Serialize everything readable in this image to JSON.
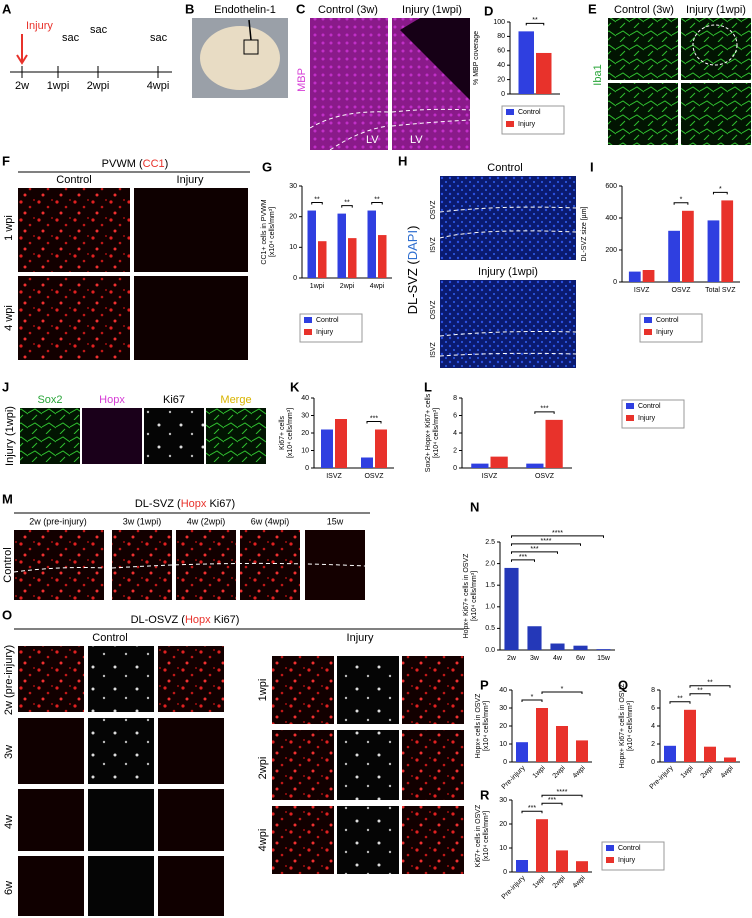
{
  "panels": {
    "A": {
      "label": "A",
      "injury": "Injury",
      "sac": [
        "sac",
        "sac",
        "sac"
      ],
      "timepoints": [
        "2w",
        "1wpi",
        "2wpi",
        "4wpi"
      ]
    },
    "B": {
      "label": "B",
      "title": "Endothelin-1"
    },
    "C": {
      "label": "C",
      "columns": [
        "Control (3w)",
        "Injury (1wpi)"
      ],
      "stain": "MBP",
      "regions": [
        "LV",
        "LV"
      ]
    },
    "E": {
      "label": "E",
      "stain": "Iba1",
      "columns": [
        "Control (3w)",
        "Injury (1wpi)"
      ]
    },
    "F": {
      "label": "F",
      "title": [
        "PVWM (",
        "CC1",
        ")"
      ],
      "columns": [
        "Control",
        "Injury"
      ],
      "rows": [
        "1 wpi",
        "4 wpi"
      ]
    },
    "H": {
      "label": "H",
      "stain": [
        "DL-SVZ (",
        "DAPI",
        ")"
      ],
      "sections": [
        "Control",
        "Injury (1wpi)"
      ],
      "zones": [
        "OSVZ",
        "ISVZ",
        "OSVZ",
        "ISVZ"
      ]
    },
    "J": {
      "label": "J",
      "channels": [
        "Sox2",
        "Hopx",
        "Ki67",
        "Merge"
      ],
      "row": "Injury (1wpi)"
    },
    "M": {
      "label": "M",
      "title": [
        "DL-SVZ (",
        "Hopx",
        " Ki67",
        ")"
      ],
      "columns": [
        "2w (pre-injury)",
        "3w (1wpi)",
        "4w (2wpi)",
        "6w (4wpi)",
        "15w"
      ],
      "row": "Control"
    },
    "O": {
      "label": "O",
      "title": [
        "DL-OSVZ (",
        "Hopx",
        " Ki67",
        ")"
      ],
      "groups": [
        "Control",
        "Injury"
      ],
      "control_rows": [
        "2w (pre-injury)",
        "3w",
        "4w",
        "6w"
      ],
      "injury_rows": [
        "1wpi",
        "2wpi",
        "4wpi"
      ]
    }
  },
  "chart_data": [
    {
      "type": "bar",
      "label": "D",
      "ylabel": [
        "% MBP coverage"
      ],
      "categories": [
        null
      ],
      "series": [
        {
          "name": "Control",
          "color": "#2f3fe0",
          "values": [
            87
          ]
        },
        {
          "name": "Injury",
          "color": "#e8322b",
          "values": [
            57
          ]
        }
      ],
      "ylim": [
        0,
        100
      ],
      "yticks": [
        0,
        20,
        40,
        60,
        80,
        100
      ],
      "annotations": [
        {
          "text": "**",
          "category": 0
        }
      ],
      "legend": true
    },
    {
      "type": "bar",
      "label": "G",
      "ylabel": [
        "CC1+ cells in PVWM",
        "[x10⁴ cells/mm³]"
      ],
      "categories": [
        "1wpi",
        "2wpi",
        "4wpi"
      ],
      "series": [
        {
          "name": "Control",
          "color": "#2f3fe0",
          "values": [
            22,
            21,
            22
          ]
        },
        {
          "name": "Injury",
          "color": "#e8322b",
          "values": [
            12,
            13,
            14
          ]
        }
      ],
      "ylim": [
        0,
        30
      ],
      "yticks": [
        0,
        10,
        20,
        30
      ],
      "annotations": [
        {
          "text": "**",
          "category": 0
        },
        {
          "text": "**",
          "category": 1
        },
        {
          "text": "**",
          "category": 2
        }
      ],
      "legend": true
    },
    {
      "type": "bar",
      "label": "I",
      "ylabel": [
        "DL-SVZ size [µm]"
      ],
      "categories": [
        "ISVZ",
        "OSVZ",
        "Total SVZ"
      ],
      "series": [
        {
          "name": "Control",
          "color": "#2f3fe0",
          "values": [
            65,
            320,
            385
          ]
        },
        {
          "name": "Injury",
          "color": "#e8322b",
          "values": [
            75,
            445,
            510
          ]
        }
      ],
      "ylim": [
        0,
        600
      ],
      "yticks": [
        0,
        200,
        400,
        600
      ],
      "annotations": [
        {
          "text": "*",
          "category": 1
        },
        {
          "text": "*",
          "category": 2
        }
      ],
      "legend": true
    },
    {
      "type": "bar",
      "label": "K",
      "ylabel": [
        "Ki67+ cells",
        "[x10⁴ cells/mm³]"
      ],
      "categories": [
        "ISVZ",
        "OSVZ"
      ],
      "series": [
        {
          "color": "#2f3fe0",
          "values": [
            22,
            6
          ]
        },
        {
          "color": "#e8322b",
          "values": [
            28,
            22
          ]
        }
      ],
      "ylim": [
        0,
        40
      ],
      "yticks": [
        0,
        10,
        20,
        30,
        40
      ],
      "annotations": [
        {
          "text": "***",
          "category": 1
        }
      ]
    },
    {
      "type": "bar",
      "label": "L",
      "ylabel": [
        "Sox2+ Hopx+ Ki67+ cells",
        "[x10⁴ cells/mm³]"
      ],
      "categories": [
        "ISVZ",
        "OSVZ"
      ],
      "series": [
        {
          "name": "Control",
          "color": "#2f3fe0",
          "values": [
            0.5,
            0.5
          ]
        },
        {
          "name": "Injury",
          "color": "#e8322b",
          "values": [
            1.3,
            5.5
          ]
        }
      ],
      "ylim": [
        0,
        8
      ],
      "yticks": [
        0,
        2,
        4,
        6,
        8
      ],
      "annotations": [
        {
          "text": "***",
          "category": 1
        }
      ],
      "legend": true
    },
    {
      "type": "bar",
      "label": "N",
      "ylabel": [
        "Hopx+ Ki67+ cells in OSVZ",
        "[x10⁴ cells/mm³]"
      ],
      "categories": [
        "2w",
        "3w",
        "4w",
        "6w",
        "15w"
      ],
      "series": [
        {
          "color": "#2438b8",
          "values": [
            1.9,
            0.55,
            0.15,
            0.1,
            0.02
          ]
        }
      ],
      "ylim": [
        0,
        2.5
      ],
      "yticks": [
        {
          "value": 0,
          "label": "0.0"
        },
        {
          "value": 0.5,
          "label": "0.5"
        },
        {
          "value": 1,
          "label": "1.0"
        },
        {
          "value": 1.5,
          "label": "1.5"
        },
        {
          "value": 2,
          "label": "2.0"
        },
        {
          "value": 2.5,
          "label": "2.5"
        }
      ],
      "annotations": [
        {
          "text": "***",
          "from": 0,
          "to": 1
        },
        {
          "text": "***",
          "from": 0,
          "to": 2
        },
        {
          "text": "****",
          "from": 0,
          "to": 3
        },
        {
          "text": "****",
          "from": 0,
          "to": 4
        }
      ]
    },
    {
      "type": "bar",
      "label": "P",
      "ylabel": [
        "Hopx+ cells in OSVZ",
        "[x10⁴ cells/mm³]"
      ],
      "categories": [
        "Pre-injury",
        "1wpi",
        "2wpi",
        "4wpi"
      ],
      "series": [
        {
          "color": "#2f3fe0",
          "values": [
            11,
            null,
            null,
            null
          ]
        },
        {
          "color": "#e8322b",
          "values": [
            null,
            30,
            20,
            12
          ]
        }
      ],
      "ylim": [
        0,
        40
      ],
      "yticks": [
        0,
        10,
        20,
        30,
        40
      ],
      "annotations": [
        {
          "text": "*",
          "from": 0,
          "to": 1
        },
        {
          "text": "*",
          "from": 1,
          "to": 3
        }
      ]
    },
    {
      "type": "bar",
      "label": "Q",
      "ylabel": [
        "Hopx+ Ki67+ cells in OSVZ",
        "[x10⁴ cells/mm³]"
      ],
      "categories": [
        "Pre-injury",
        "1wpi",
        "2wpi",
        "4wpi"
      ],
      "series": [
        {
          "color": "#2f3fe0",
          "values": [
            1.8,
            null,
            null,
            null
          ]
        },
        {
          "color": "#e8322b",
          "values": [
            null,
            5.8,
            1.7,
            0.5
          ]
        }
      ],
      "ylim": [
        0,
        8
      ],
      "yticks": [
        0,
        2,
        4,
        6,
        8
      ],
      "annotations": [
        {
          "text": "**",
          "from": 0,
          "to": 1
        },
        {
          "text": "**",
          "from": 1,
          "to": 2
        },
        {
          "text": "**",
          "from": 1,
          "to": 3
        }
      ]
    },
    {
      "type": "bar",
      "label": "R",
      "ylabel": [
        "Ki67+ cells in OSVZ",
        "[x10⁴ cells/mm³]"
      ],
      "categories": [
        "Pre-injury",
        "1wpi",
        "2wpi",
        "4wpi"
      ],
      "series": [
        {
          "name": "Control",
          "color": "#2f3fe0",
          "values": [
            5,
            null,
            null,
            null
          ]
        },
        {
          "name": "Injury",
          "color": "#e8322b",
          "values": [
            null,
            22,
            9,
            4.5
          ]
        }
      ],
      "ylim": [
        0,
        30
      ],
      "yticks": [
        0,
        10,
        20,
        30
      ],
      "annotations": [
        {
          "text": "***",
          "from": 0,
          "to": 1
        },
        {
          "text": "***",
          "from": 1,
          "to": 2
        },
        {
          "text": "****",
          "from": 1,
          "to": 3
        }
      ],
      "legend": true
    }
  ]
}
